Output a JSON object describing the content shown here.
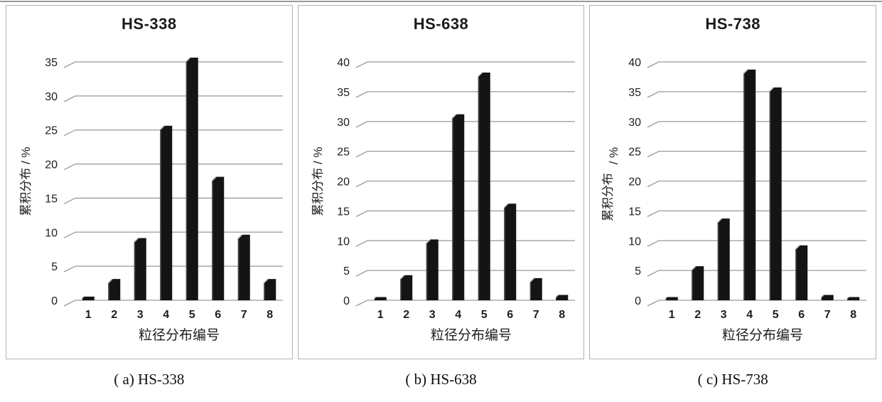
{
  "style": {
    "grid_color": "#9a9a9a",
    "panel_border": "#b3b3b3",
    "text_color": "#1d1d1d",
    "bar_color": "#141414",
    "bar_edge_highlight": "#9a9a9a",
    "background": "#ffffff"
  },
  "captions": [
    "( a) HS-338",
    "( b) HS-638",
    "( c) HS-738"
  ],
  "chart_data": [
    {
      "type": "bar",
      "title": "HS-338",
      "categories": [
        "1",
        "2",
        "3",
        "4",
        "5",
        "6",
        "7",
        "8"
      ],
      "values": [
        0.3,
        2.5,
        8.5,
        25,
        35,
        17.5,
        9,
        2.5
      ],
      "xlabel": "粒径分布编号",
      "ylabel": "累积分布 / %",
      "ylabel_lines": [
        "累积分布 / %"
      ],
      "ylim": [
        0,
        35
      ],
      "ytick_step": 5,
      "grid": true,
      "legend": "none"
    },
    {
      "type": "bar",
      "title": "HS-638",
      "categories": [
        "1",
        "2",
        "3",
        "4",
        "5",
        "6",
        "7",
        "8"
      ],
      "values": [
        0.3,
        3.5,
        9.5,
        30.5,
        37.5,
        15.5,
        3,
        0.5
      ],
      "xlabel": "粒径分布编号",
      "ylabel": "累积分布 / %",
      "ylabel_lines": [
        "累积分布 / %"
      ],
      "ylim": [
        0,
        40
      ],
      "ytick_step": 5,
      "grid": true,
      "legend": "none"
    },
    {
      "type": "bar",
      "title": "HS-738",
      "categories": [
        "1",
        "2",
        "3",
        "4",
        "5",
        "6",
        "7",
        "8"
      ],
      "values": [
        0.3,
        5,
        13,
        38,
        35,
        8.5,
        0.5,
        0.3
      ],
      "xlabel": "粒径分布编号",
      "ylabel": "累积分布 / %",
      "ylabel_lines": [
        "累积分布",
        "/ %"
      ],
      "ylim": [
        0,
        40
      ],
      "ytick_step": 5,
      "grid": true,
      "legend": "none"
    }
  ]
}
